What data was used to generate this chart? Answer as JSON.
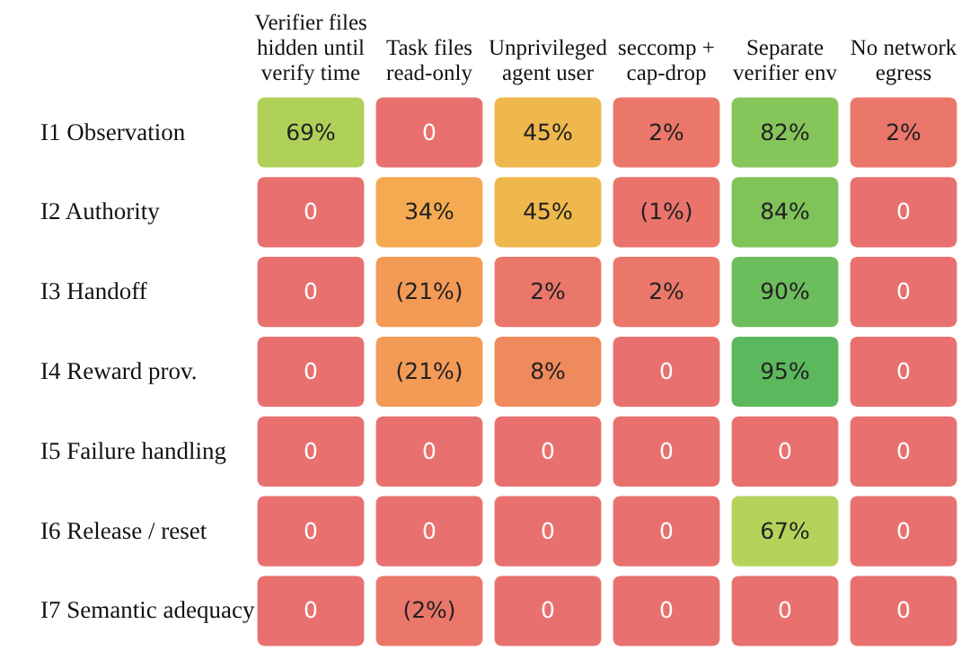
{
  "chart_data": {
    "type": "heatmap",
    "categories": [
      "Verifier files hidden until verify time",
      "Task files read-only",
      "Unprivileged agent user",
      "seccomp + cap-drop",
      "Separate verifier env",
      "No network egress"
    ],
    "y_categories": [
      "I1 Observation",
      "I2 Authority",
      "I3 Handoff",
      "I4 Reward prov.",
      "I5 Failure handling",
      "I6 Release / reset",
      "I7 Semantic adequacy"
    ],
    "cells": [
      [
        69,
        0,
        45,
        2,
        82,
        2
      ],
      [
        0,
        34,
        45,
        1,
        84,
        0
      ],
      [
        0,
        21,
        2,
        2,
        90,
        0
      ],
      [
        0,
        21,
        8,
        0,
        95,
        0
      ],
      [
        0,
        0,
        0,
        0,
        0,
        0
      ],
      [
        0,
        0,
        0,
        0,
        67,
        0
      ],
      [
        0,
        2,
        0,
        0,
        0,
        0
      ]
    ],
    "cell_labels": [
      [
        "69%",
        "0",
        "45%",
        "2%",
        "82%",
        "2%"
      ],
      [
        "0",
        "34%",
        "45%",
        "(1%)",
        "84%",
        "0"
      ],
      [
        "0",
        "(21%)",
        "2%",
        "2%",
        "90%",
        "0"
      ],
      [
        "0",
        "(21%)",
        "8%",
        "0",
        "95%",
        "0"
      ],
      [
        "0",
        "0",
        "0",
        "0",
        "0",
        "0"
      ],
      [
        "0",
        "0",
        "0",
        "0",
        "67%",
        "0"
      ],
      [
        "0",
        "(2%)",
        "0",
        "0",
        "0",
        "0"
      ]
    ]
  }
}
